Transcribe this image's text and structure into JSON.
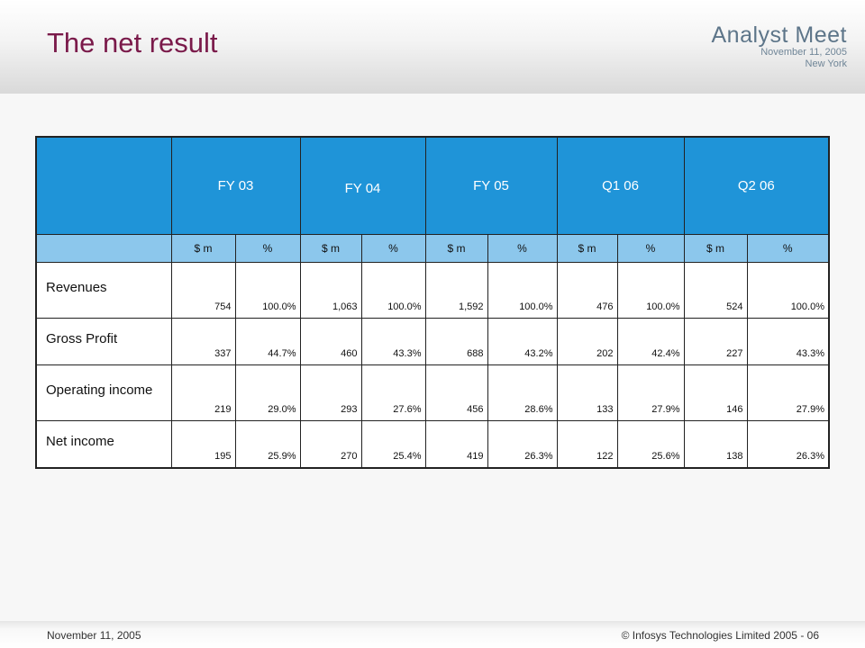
{
  "header": {
    "title": "The net result",
    "brand": {
      "name": "Analyst Meet",
      "date": "November 11, 2005",
      "city": "New York"
    }
  },
  "table": {
    "periods": [
      "FY 03",
      "FY 04",
      "FY 05",
      "Q1 06",
      "Q2 06"
    ],
    "subheaders": [
      "$ m",
      "%"
    ],
    "rows": [
      {
        "label": "Revenues",
        "values": [
          "754",
          "100.0%",
          "1,063",
          "100.0%",
          "1,592",
          "100.0%",
          "476",
          "100.0%",
          "524",
          "100.0%"
        ]
      },
      {
        "label": "Gross Profit",
        "values": [
          "337",
          "44.7%",
          "460",
          "43.3%",
          "688",
          "43.2%",
          "202",
          "42.4%",
          "227",
          "43.3%"
        ]
      },
      {
        "label": "Operating income",
        "values": [
          "219",
          "29.0%",
          "293",
          "27.6%",
          "456",
          "28.6%",
          "133",
          "27.9%",
          "146",
          "27.9%"
        ]
      },
      {
        "label": "Net income",
        "values": [
          "195",
          "25.9%",
          "270",
          "25.4%",
          "419",
          "26.3%",
          "122",
          "25.6%",
          "138",
          "26.3%"
        ]
      }
    ]
  },
  "footer": {
    "date": "November 11, 2005",
    "copyright": "© Infosys Technologies Limited 2005 - 06"
  }
}
